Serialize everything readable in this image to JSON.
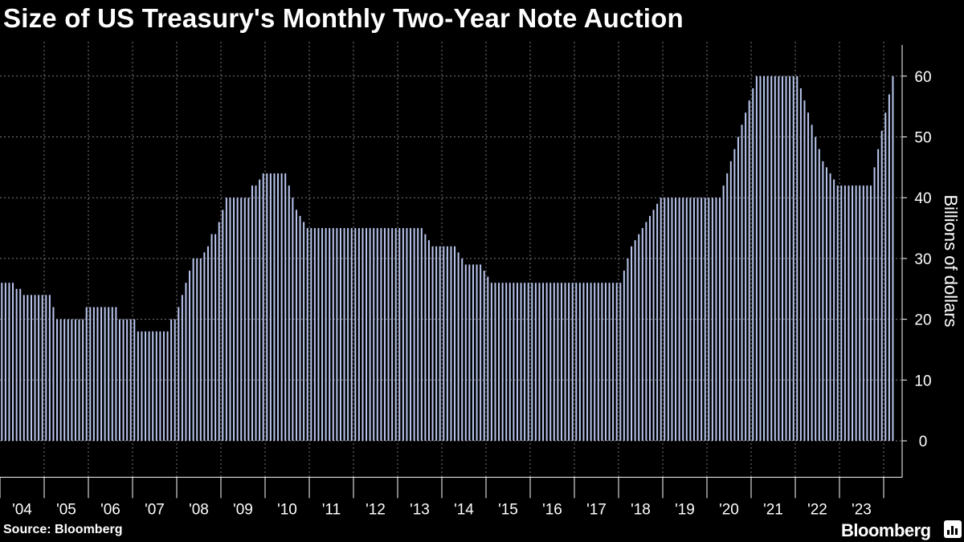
{
  "title": "Size of US Treasury's Monthly Two-Year Note Auction",
  "source": "Source: Bloomberg",
  "brand": "Bloomberg",
  "colors": {
    "background": "#000000",
    "bar": "#b9c6ee",
    "grid": "#7a7a7a",
    "text": "#ffffff"
  },
  "chart_data": {
    "type": "bar",
    "title": "Size of US Treasury's Monthly Two-Year Note Auction",
    "xlabel": "",
    "ylabel": "Billions of dollars",
    "ylim": [
      -6,
      65
    ],
    "y_ticks": [
      0,
      10,
      20,
      30,
      40,
      50,
      60
    ],
    "x_tick_labels": [
      "'04",
      "'05",
      "'06",
      "'07",
      "'08",
      "'09",
      "'10",
      "'11",
      "'12",
      "'13",
      "'14",
      "'15",
      "'16",
      "'17",
      "'18",
      "'19",
      "'20",
      "'21",
      "'22",
      "'23"
    ],
    "grid": true,
    "legend": "none",
    "frequency": "monthly",
    "start": "2004-01",
    "end": "2023-08",
    "series": [
      {
        "values": [
          26,
          26,
          26,
          26,
          25,
          25,
          24,
          24,
          24,
          24,
          24,
          24,
          24,
          24,
          22,
          20,
          20,
          20,
          20,
          20,
          20,
          20,
          20,
          22,
          22,
          22,
          22,
          22,
          22,
          22,
          22,
          22,
          20,
          20,
          20,
          20,
          20,
          18,
          18,
          18,
          18,
          18,
          18,
          18,
          18,
          18,
          20,
          20,
          22,
          24,
          26,
          28,
          30,
          30,
          30,
          31,
          32,
          34,
          34,
          36,
          38,
          40,
          40,
          40,
          40,
          40,
          40,
          40,
          42,
          42,
          43,
          44,
          44,
          44,
          44,
          44,
          44,
          44,
          42,
          40,
          38,
          37,
          36,
          35,
          35,
          35,
          35,
          35,
          35,
          35,
          35,
          35,
          35,
          35,
          35,
          35,
          35,
          35,
          35,
          35,
          35,
          35,
          35,
          35,
          35,
          35,
          35,
          35,
          35,
          35,
          35,
          35,
          35,
          35,
          35,
          34,
          33,
          32,
          32,
          32,
          32,
          32,
          32,
          32,
          31,
          30,
          29,
          29,
          29,
          29,
          29,
          28,
          27,
          26,
          26,
          26,
          26,
          26,
          26,
          26,
          26,
          26,
          26,
          26,
          26,
          26,
          26,
          26,
          26,
          26,
          26,
          26,
          26,
          26,
          26,
          26,
          26,
          26,
          26,
          26,
          26,
          26,
          26,
          26,
          26,
          26,
          26,
          26,
          26,
          28,
          30,
          32,
          33,
          34,
          35,
          36,
          37,
          38,
          39,
          40,
          40,
          40,
          40,
          40,
          40,
          40,
          40,
          40,
          40,
          40,
          40,
          40,
          40,
          40,
          40,
          40,
          42,
          44,
          46,
          48,
          50,
          52,
          54,
          56,
          58,
          60,
          60,
          60,
          60,
          60,
          60,
          60,
          60,
          60,
          60,
          60,
          60,
          58,
          56,
          54,
          52,
          50,
          48,
          46,
          45,
          44,
          43,
          42,
          42,
          42,
          42,
          42,
          42,
          42,
          42,
          42,
          42,
          45,
          48,
          51,
          54,
          57,
          60
        ]
      }
    ]
  }
}
